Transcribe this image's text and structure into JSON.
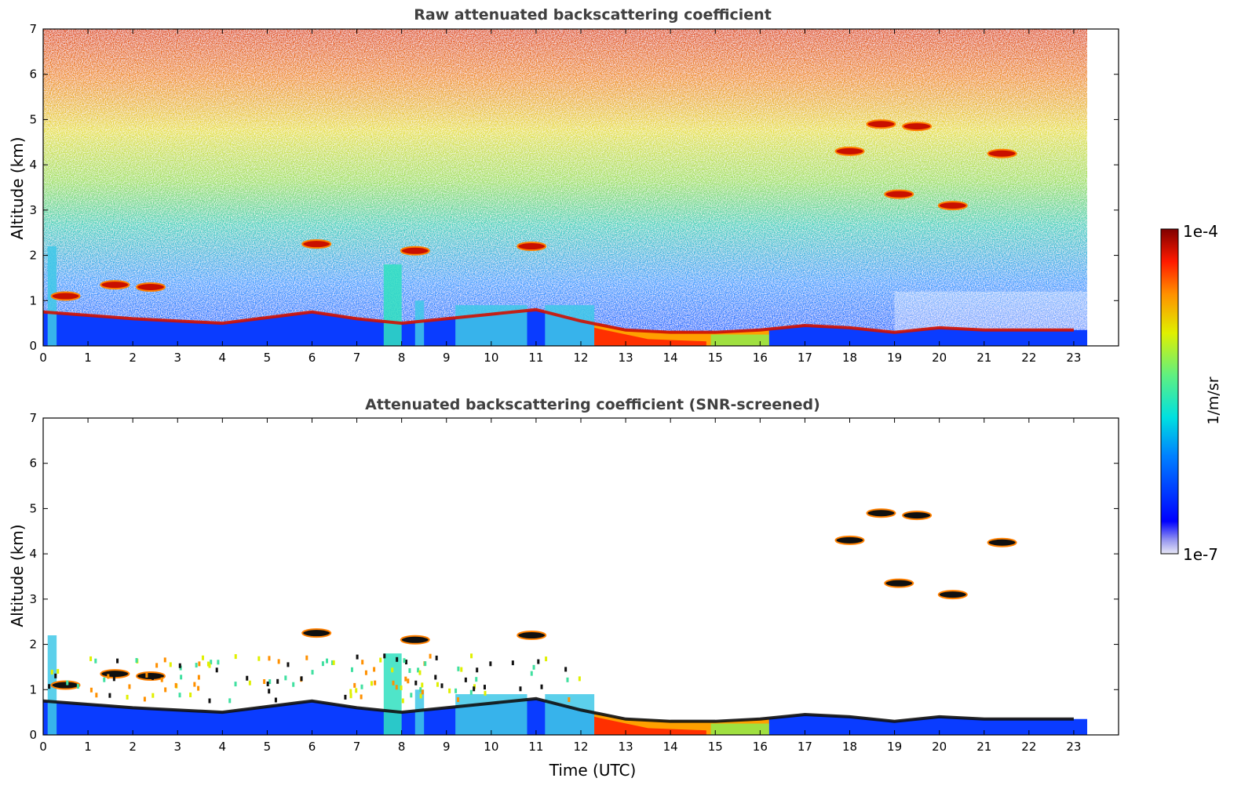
{
  "chart_data": [
    {
      "type": "heatmap",
      "title": "Raw attenuated backscattering coefficient",
      "xlabel": "",
      "ylabel": "Altitude (km)",
      "xlim": [
        0,
        24
      ],
      "ylim": [
        0,
        7
      ],
      "x_ticks": [
        "0",
        "1",
        "2",
        "3",
        "4",
        "5",
        "6",
        "7",
        "8",
        "9",
        "10",
        "11",
        "12",
        "13",
        "14",
        "15",
        "16",
        "17",
        "18",
        "19",
        "20",
        "21",
        "22",
        "23"
      ],
      "y_ticks": [
        "0",
        "1",
        "2",
        "3",
        "4",
        "5",
        "6",
        "7"
      ],
      "data_end_time": 23.3,
      "boundary_layer_top_km": [
        [
          0,
          0.75
        ],
        [
          2,
          0.6
        ],
        [
          4,
          0.5
        ],
        [
          6,
          0.75
        ],
        [
          7,
          0.6
        ],
        [
          8,
          0.5
        ],
        [
          9,
          0.6
        ],
        [
          10,
          0.7
        ],
        [
          11,
          0.8
        ],
        [
          12,
          0.55
        ],
        [
          13,
          0.35
        ],
        [
          14,
          0.3
        ],
        [
          15,
          0.3
        ],
        [
          16,
          0.35
        ],
        [
          17,
          0.45
        ],
        [
          18,
          0.4
        ],
        [
          19,
          0.3
        ],
        [
          20,
          0.4
        ],
        [
          21,
          0.35
        ],
        [
          22,
          0.35
        ],
        [
          23,
          0.35
        ]
      ],
      "features": [
        {
          "t": 0.5,
          "alt_km": 1.1,
          "intensity": "high"
        },
        {
          "t": 1.6,
          "alt_km": 1.35,
          "intensity": "high"
        },
        {
          "t": 2.4,
          "alt_km": 1.3,
          "intensity": "high"
        },
        {
          "t": 6.1,
          "alt_km": 2.25,
          "intensity": "high"
        },
        {
          "t": 8.3,
          "alt_km": 2.1,
          "intensity": "high"
        },
        {
          "t": 10.9,
          "alt_km": 2.2,
          "intensity": "high"
        },
        {
          "t": 18.0,
          "alt_km": 4.3,
          "intensity": "high"
        },
        {
          "t": 18.7,
          "alt_km": 4.9,
          "intensity": "high"
        },
        {
          "t": 19.5,
          "alt_km": 4.85,
          "intensity": "high"
        },
        {
          "t": 19.1,
          "alt_km": 3.35,
          "intensity": "high"
        },
        {
          "t": 20.3,
          "alt_km": 3.1,
          "intensity": "high"
        },
        {
          "t": 21.4,
          "alt_km": 4.25,
          "intensity": "high"
        }
      ]
    },
    {
      "type": "heatmap",
      "title": "Attenuated backscattering coefficient (SNR-screened)",
      "xlabel": "Time (UTC)",
      "ylabel": "Altitude (km)",
      "xlim": [
        0,
        24
      ],
      "ylim": [
        0,
        7
      ],
      "x_ticks": [
        "0",
        "1",
        "2",
        "3",
        "4",
        "5",
        "6",
        "7",
        "8",
        "9",
        "10",
        "11",
        "12",
        "13",
        "14",
        "15",
        "16",
        "17",
        "18",
        "19",
        "20",
        "21",
        "22",
        "23"
      ],
      "y_ticks": [
        "0",
        "1",
        "2",
        "3",
        "4",
        "5",
        "6",
        "7"
      ],
      "data_end_time": 23.3
    }
  ],
  "colorbar": {
    "max_label": "1e-4",
    "min_label": "1e-7",
    "unit": "1/m/sr",
    "colormap": "jet"
  }
}
